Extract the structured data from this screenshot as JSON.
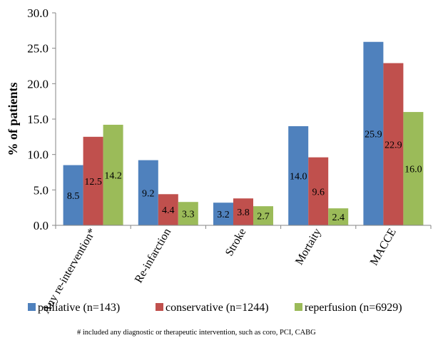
{
  "chart_data": {
    "type": "bar",
    "categories": [
      "Any re-intervention*",
      "Re-infarction",
      "Stroke",
      "Mortaity",
      "MACCE"
    ],
    "series": [
      {
        "name": "palliative (n=143)",
        "color": "#4F81BD",
        "values": [
          8.5,
          9.2,
          3.2,
          14.0,
          25.9
        ],
        "labels": [
          "8.5",
          "9.2",
          "3.2",
          "14.0",
          "25.9"
        ]
      },
      {
        "name": "conservative (n=1244)",
        "color": "#C0504D",
        "values": [
          12.5,
          4.4,
          3.8,
          9.6,
          22.9
        ],
        "labels": [
          "12.5",
          "4.4",
          "3.8",
          "9.6",
          "22.9"
        ]
      },
      {
        "name": "reperfusion (n=6929)",
        "color": "#9BBB59",
        "values": [
          14.2,
          3.3,
          2.7,
          2.4,
          16.0
        ],
        "labels": [
          "14.2",
          "3.3",
          "2.7",
          "2.4",
          "16.0"
        ]
      }
    ],
    "ylabel": "% of patients",
    "ylim": [
      0,
      30
    ],
    "yticks": [
      "0.0",
      "5.0",
      "10.0",
      "15.0",
      "20.0",
      "25.0",
      "30.0"
    ],
    "grid": false,
    "legend_position": "bottom"
  },
  "footnote": "# included any diagnostic or therapeutic intervention, such as coro, PCI, CABG"
}
